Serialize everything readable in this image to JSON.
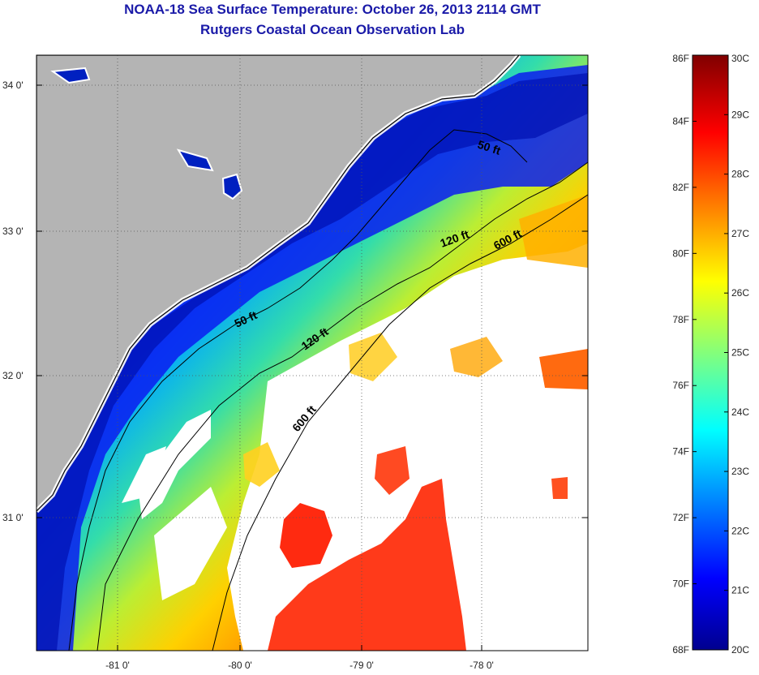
{
  "title": {
    "line1": "NOAA-18 Sea Surface Temperature:  October 26, 2013 2114 GMT",
    "line2": "Rutgers Coastal Ocean Observation Lab"
  },
  "map": {
    "lat_ticks": [
      {
        "value": 34,
        "label": "34 0'"
      },
      {
        "value": 33,
        "label": "33 0'"
      },
      {
        "value": 32,
        "label": "32 0'"
      },
      {
        "value": 31,
        "label": "31 0'"
      }
    ],
    "lon_ticks": [
      {
        "value": -81,
        "label": "-81 0'"
      },
      {
        "value": -80,
        "label": "-80 0'"
      },
      {
        "value": -79,
        "label": "-79 0'"
      },
      {
        "value": -78,
        "label": "-78 0'"
      }
    ],
    "contour_labels": [
      {
        "id": "50ft-north",
        "text": "50 ft"
      },
      {
        "id": "50ft-south",
        "text": "50 ft"
      },
      {
        "id": "120ft-north",
        "text": "120 ft"
      },
      {
        "id": "120ft-south",
        "text": "120 ft"
      },
      {
        "id": "600ft-north",
        "text": "600 ft"
      },
      {
        "id": "600ft-south",
        "text": "600 ft"
      }
    ],
    "colors": {
      "land": "#b4b4b4",
      "cloud": "#ffffff",
      "coast": "#000000"
    }
  },
  "colorbar": {
    "fahrenheit_labels": [
      "86F",
      "84F",
      "82F",
      "80F",
      "78F",
      "76F",
      "74F",
      "72F",
      "70F",
      "68F"
    ],
    "celsius_labels": [
      "30C",
      "29C",
      "28C",
      "27C",
      "26C",
      "25C",
      "24C",
      "23C",
      "22C",
      "21C",
      "20C"
    ],
    "min_f": 68,
    "max_f": 86,
    "colormap": "jet"
  }
}
